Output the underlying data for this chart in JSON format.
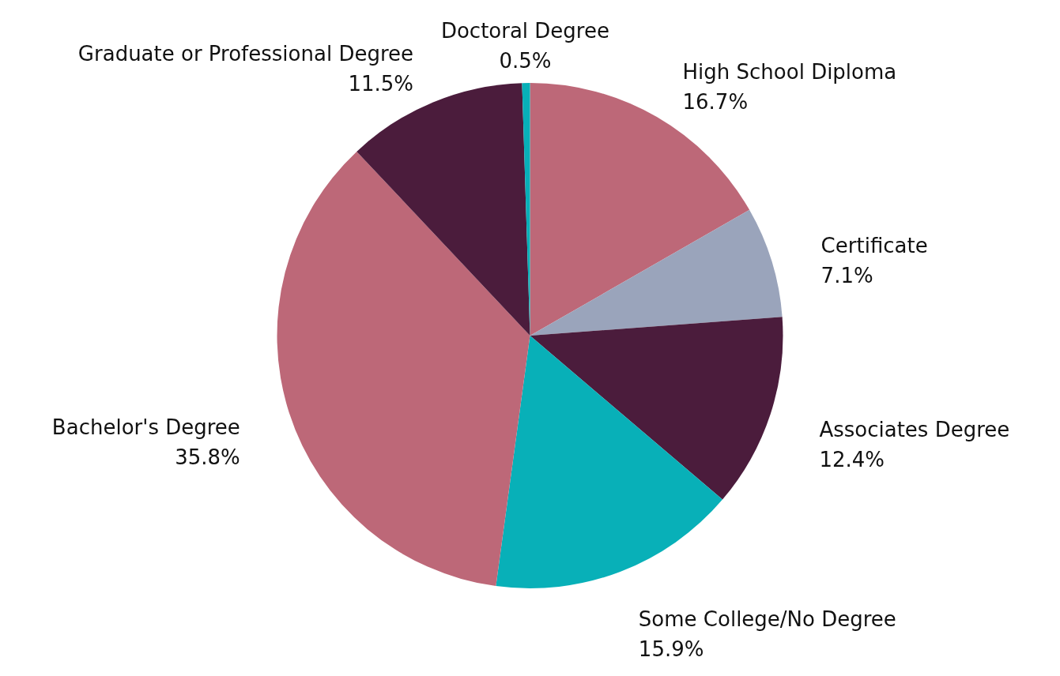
{
  "chart_data": {
    "type": "pie",
    "categories": [
      "High School Diploma",
      "Certificate",
      "Associates Degree",
      "Some College/No Degree",
      "Bachelor's Degree",
      "Graduate or Professional Degree",
      "Doctoral Degree"
    ],
    "values": [
      16.7,
      7.1,
      12.4,
      15.9,
      35.8,
      11.5,
      0.5
    ],
    "value_labels": [
      "16.7%",
      "7.1%",
      "12.4%",
      "15.9%",
      "35.8%",
      "11.5%",
      "0.5%"
    ],
    "colors": [
      "#bd6878",
      "#9aa4bb",
      "#4b1c3c",
      "#08b0b8",
      "#bd6878",
      "#4b1c3c",
      "#08b0b8"
    ]
  }
}
